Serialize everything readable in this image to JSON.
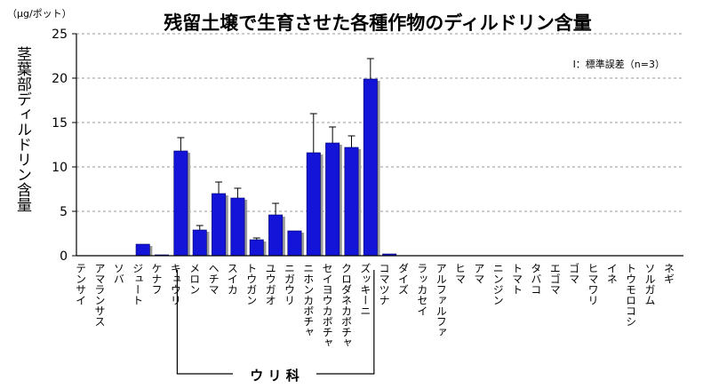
{
  "chart_data": {
    "type": "bar",
    "title": "残留土壌で生育させた各種作物のディルドリン含量",
    "ylabel": "茎葉部ディルドリン含量",
    "unit": "（μg/ポット）",
    "ylim": [
      0,
      25
    ],
    "yticks": [
      0,
      5,
      10,
      15,
      20,
      25
    ],
    "grid": true,
    "legend_note": "I：標準誤差（n=3）",
    "group_label": "ウ リ 科",
    "group_range": [
      "キュウリ",
      "ズッキーニ"
    ],
    "bar_color": "#1414d8",
    "categories": [
      "テンサイ",
      "アマランサス",
      "ソバ",
      "ジュート",
      "ケナフ",
      "キュウリ",
      "メロン",
      "ヘチマ",
      "スイカ",
      "トウガン",
      "ユウガオ",
      "ニガウリ",
      "ニホンカボチャ",
      "セイヨウカボチャ",
      "クロダネカボチャ",
      "ズッキーニ",
      "コマツナ",
      "ダイズ",
      "ラッカセイ",
      "アルファルファ",
      "ヒマ",
      "アマ",
      "ニンジン",
      "トマト",
      "タバコ",
      "エゴマ",
      "ゴマ",
      "ヒマワリ",
      "イネ",
      "トウモロコシ",
      "ソルガム",
      "ネギ"
    ],
    "values": [
      0,
      0,
      0,
      1.3,
      0.1,
      11.8,
      2.9,
      7.0,
      6.5,
      1.8,
      4.6,
      2.8,
      11.6,
      12.7,
      12.2,
      19.9,
      0.2,
      0,
      0,
      0,
      0,
      0,
      0,
      0,
      0,
      0,
      0,
      0,
      0,
      0,
      0,
      0
    ],
    "errors": [
      0,
      0,
      0,
      0,
      0,
      1.5,
      0.5,
      1.3,
      1.1,
      0.2,
      1.3,
      0,
      4.4,
      1.8,
      1.3,
      2.3,
      0,
      0,
      0,
      0,
      0,
      0,
      0,
      0,
      0,
      0,
      0,
      0,
      0,
      0,
      0,
      0
    ]
  }
}
